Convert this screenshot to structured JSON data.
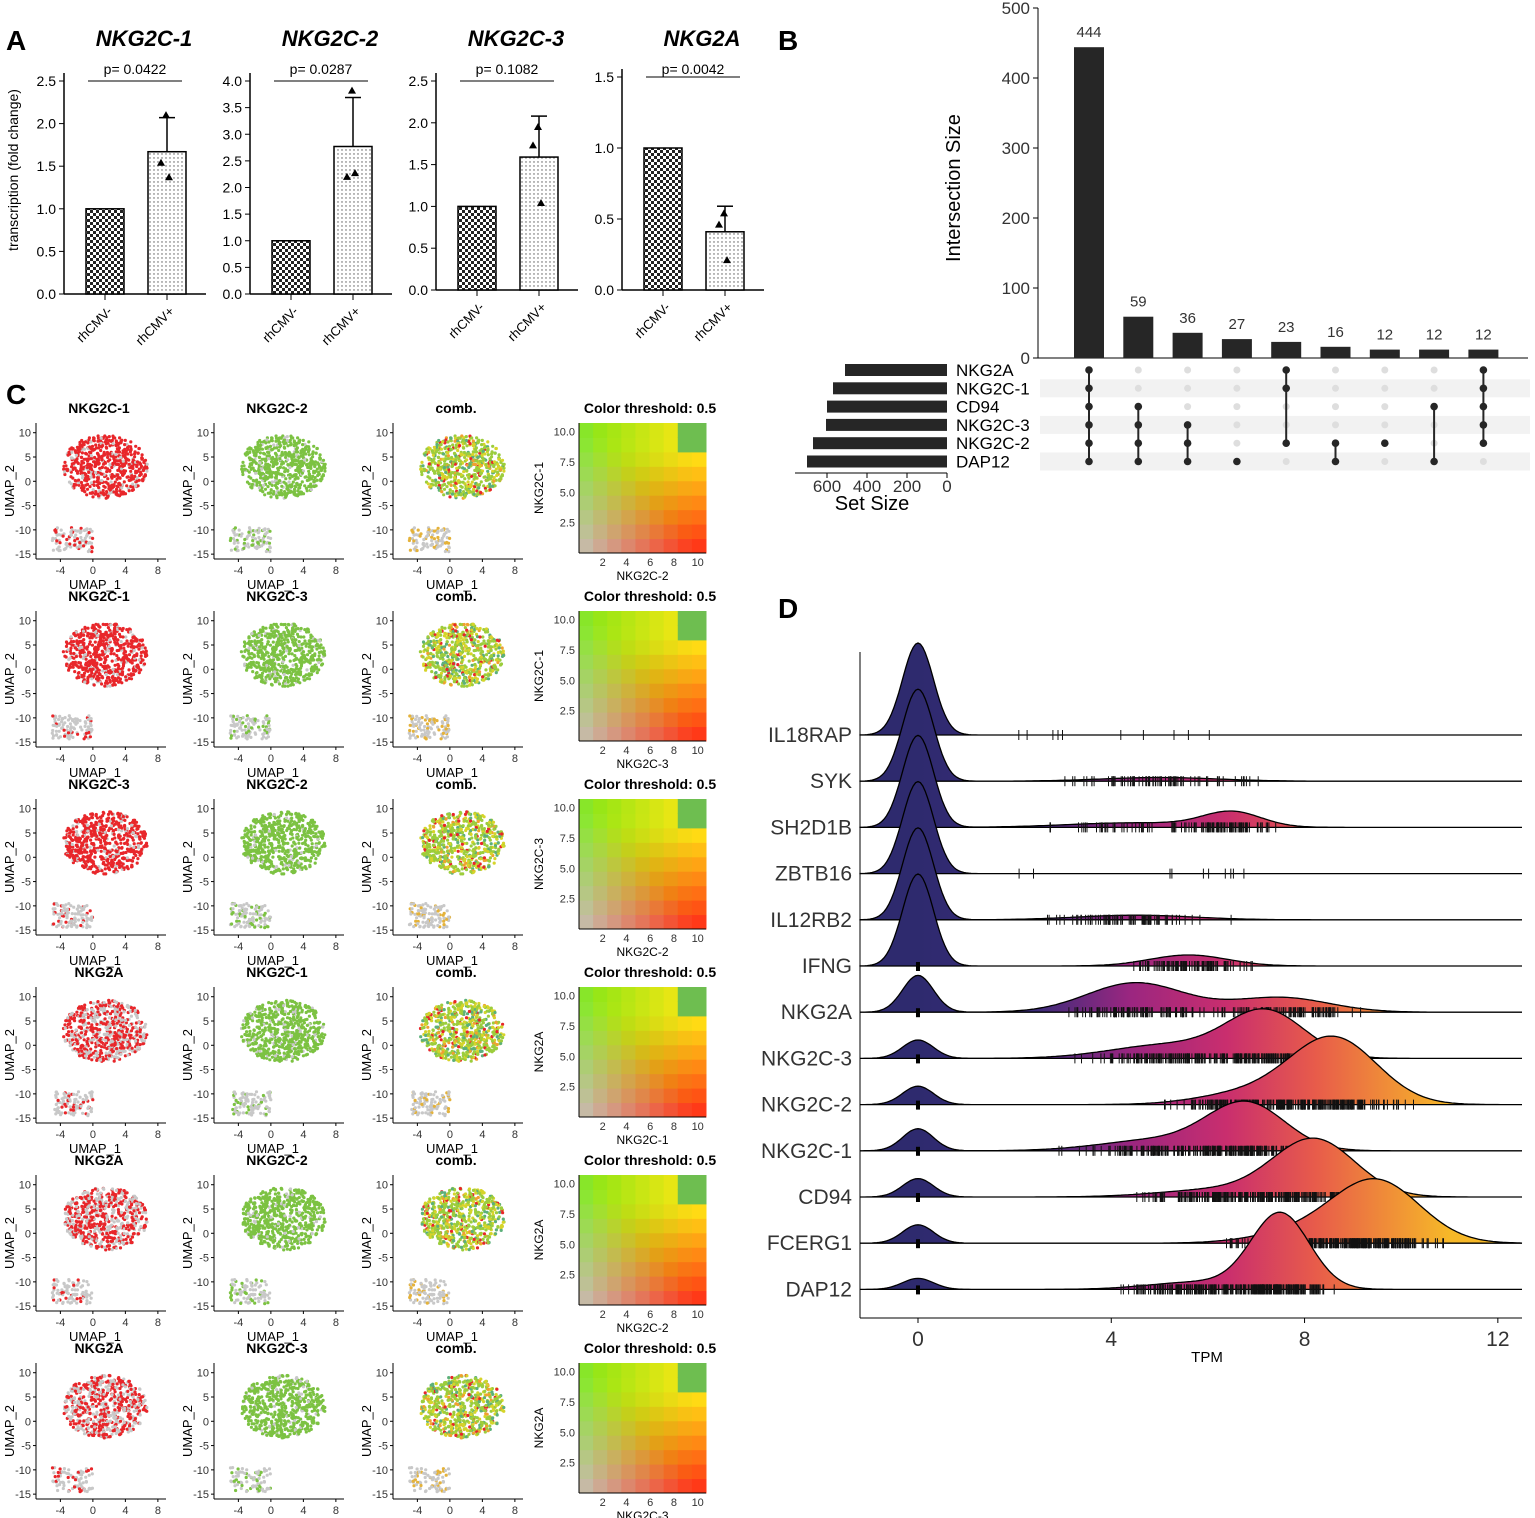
{
  "colors": {
    "red": "#e8262a",
    "green": "#7cc242",
    "grey": "#c8c8c8",
    "navy": "#2e2a6e",
    "bar": "#262626",
    "magenta": "#b0246f",
    "orange": "#f39a2a"
  },
  "panel_labels": {
    "a": "A",
    "b": "B",
    "c": "C",
    "d": "D"
  },
  "chart_data": [
    {
      "panel": "A",
      "type": "bar",
      "ylabel": "transcription (fold change)",
      "categories": [
        "rhCMV-",
        "rhCMV+"
      ],
      "subplots": [
        {
          "title": "NKG2C-1",
          "pvalue": "p= 0.0422",
          "ylim": [
            0,
            2.5
          ],
          "yticks": [
            "0.0",
            "0.5",
            "1.0",
            "1.5",
            "2.0",
            "2.5"
          ],
          "values": [
            1.0,
            1.67
          ],
          "error": 0.4,
          "points": [
            2.1,
            1.54,
            1.37
          ]
        },
        {
          "title": "NKG2C-2",
          "pvalue": "p= 0.0287",
          "ylim": [
            0,
            4.0
          ],
          "yticks": [
            "0.0",
            "0.5",
            "1.0",
            "1.5",
            "2.0",
            "2.5",
            "3.0",
            "3.5",
            "4.0"
          ],
          "values": [
            1.0,
            2.77
          ],
          "error": 0.92,
          "points": [
            3.82,
            2.2,
            2.27
          ]
        },
        {
          "title": "NKG2C-3",
          "pvalue": "p= 0.1082",
          "ylim": [
            0,
            2.5
          ],
          "yticks": [
            "0.0",
            "0.5",
            "1.0",
            "1.5",
            "2.0",
            "2.5"
          ],
          "values": [
            1.0,
            1.59
          ],
          "error": 0.49,
          "points": [
            1.95,
            1.73,
            1.04
          ]
        },
        {
          "title": "NKG2A",
          "pvalue": "p= 0.0042",
          "ylim": [
            0,
            1.5
          ],
          "yticks": [
            "0.0",
            "0.5",
            "1.0",
            "1.5"
          ],
          "values": [
            1.0,
            0.41
          ],
          "error": 0.18,
          "points": [
            0.54,
            0.46,
            0.21
          ]
        }
      ]
    },
    {
      "panel": "B",
      "type": "bar",
      "subtype": "upset",
      "ylabel": "Intersection Size",
      "set_size_label": "Set Size",
      "ylim": [
        0,
        500
      ],
      "yticks": [
        0,
        100,
        200,
        300,
        400,
        500
      ],
      "values": [
        444,
        59,
        36,
        27,
        23,
        16,
        12,
        12,
        12
      ],
      "sets": [
        "NKG2A",
        "NKG2C-1",
        "CD94",
        "NKG2C-3",
        "NKG2C-2",
        "DAP12"
      ],
      "set_sizes": [
        510,
        570,
        600,
        605,
        670,
        700
      ],
      "set_ticks": [
        "600",
        "400",
        "200",
        "0"
      ],
      "membership": [
        [
          0,
          1,
          2,
          3,
          4,
          5
        ],
        [
          2,
          3,
          4,
          5
        ],
        [
          3,
          4,
          5
        ],
        [
          5
        ],
        [
          0,
          1,
          4
        ],
        [
          4,
          5
        ],
        [
          4
        ],
        [
          2,
          5
        ],
        [
          0,
          1,
          2,
          3,
          4
        ]
      ]
    },
    {
      "panel": "C",
      "type": "scatter",
      "subtype": "umap-blend",
      "xlabel": "UMAP_1",
      "ylabel": "UMAP_2",
      "xticks": [
        "-4",
        "0",
        "4",
        "8"
      ],
      "yticks": [
        "10",
        "5",
        "0",
        "-5",
        "-10",
        "-15"
      ],
      "comb_title": "comb.",
      "legend_title": "Color threshold: 0.5",
      "legend_xticks": [
        "2",
        "4",
        "6",
        "8",
        "10"
      ],
      "legend_yticks": [
        "10.0",
        "7.5",
        "5.0",
        "2.5"
      ],
      "rows": [
        {
          "gene1": "NKG2C-1",
          "gene2": "NKG2C-2"
        },
        {
          "gene1": "NKG2C-1",
          "gene2": "NKG2C-3"
        },
        {
          "gene1": "NKG2C-3",
          "gene2": "NKG2C-2"
        },
        {
          "gene1": "NKG2A",
          "gene2": "NKG2C-1"
        },
        {
          "gene1": "NKG2A",
          "gene2": "NKG2C-2"
        },
        {
          "gene1": "NKG2A",
          "gene2": "NKG2C-3"
        }
      ]
    },
    {
      "panel": "D",
      "type": "area",
      "subtype": "ridgeline",
      "xlabel": "TPM",
      "xlim": [
        -1.2,
        12.5
      ],
      "xticks": [
        "0",
        "4",
        "8",
        "12"
      ],
      "genes": [
        "IL18RAP",
        "SYK",
        "SH2D1B",
        "ZBTB16",
        "IL12RB2",
        "IFNG",
        "NKG2A",
        "NKG2C-3",
        "NKG2C-2",
        "NKG2C-1",
        "CD94",
        "FCERG1",
        "DAP12"
      ],
      "ridges": [
        {
          "gene": "IL18RAP",
          "zero_weight": 1.0,
          "modes": []
        },
        {
          "gene": "SYK",
          "zero_weight": 1.0,
          "modes": [
            [
              5.0,
              1.2,
              0.04
            ]
          ]
        },
        {
          "gene": "SH2D1B",
          "zero_weight": 1.0,
          "modes": [
            [
              6.5,
              0.6,
              0.16
            ],
            [
              4.5,
              1.4,
              0.05
            ]
          ]
        },
        {
          "gene": "ZBTB16",
          "zero_weight": 1.0,
          "modes": []
        },
        {
          "gene": "IL12RB2",
          "zero_weight": 1.0,
          "modes": [
            [
              4.5,
              1.2,
              0.05
            ]
          ]
        },
        {
          "gene": "IFNG",
          "zero_weight": 1.0,
          "modes": [
            [
              5.6,
              0.8,
              0.12
            ]
          ]
        },
        {
          "gene": "NKG2A",
          "zero_weight": 0.4,
          "modes": [
            [
              4.5,
              1.0,
              0.32
            ],
            [
              7.5,
              1.0,
              0.16
            ]
          ]
        },
        {
          "gene": "NKG2C-3",
          "zero_weight": 0.2,
          "modes": [
            [
              7.2,
              0.8,
              0.5
            ],
            [
              5.2,
              1.2,
              0.15
            ]
          ]
        },
        {
          "gene": "NKG2C-2",
          "zero_weight": 0.2,
          "modes": [
            [
              8.6,
              0.9,
              0.72
            ],
            [
              6.8,
              1.0,
              0.12
            ]
          ]
        },
        {
          "gene": "NKG2C-1",
          "zero_weight": 0.24,
          "modes": [
            [
              6.8,
              0.8,
              0.5
            ],
            [
              5.0,
              1.2,
              0.12
            ]
          ]
        },
        {
          "gene": "CD94",
          "zero_weight": 0.2,
          "modes": [
            [
              8.2,
              0.85,
              0.62
            ],
            [
              6.2,
              1.2,
              0.08
            ]
          ]
        },
        {
          "gene": "FCERG1",
          "zero_weight": 0.2,
          "modes": [
            [
              9.5,
              0.9,
              0.66
            ],
            [
              8.0,
              1.0,
              0.12
            ]
          ]
        },
        {
          "gene": "DAP12",
          "zero_weight": 0.12,
          "modes": [
            [
              7.5,
              0.6,
              0.82
            ],
            [
              5.8,
              1.0,
              0.08
            ]
          ]
        }
      ]
    }
  ]
}
